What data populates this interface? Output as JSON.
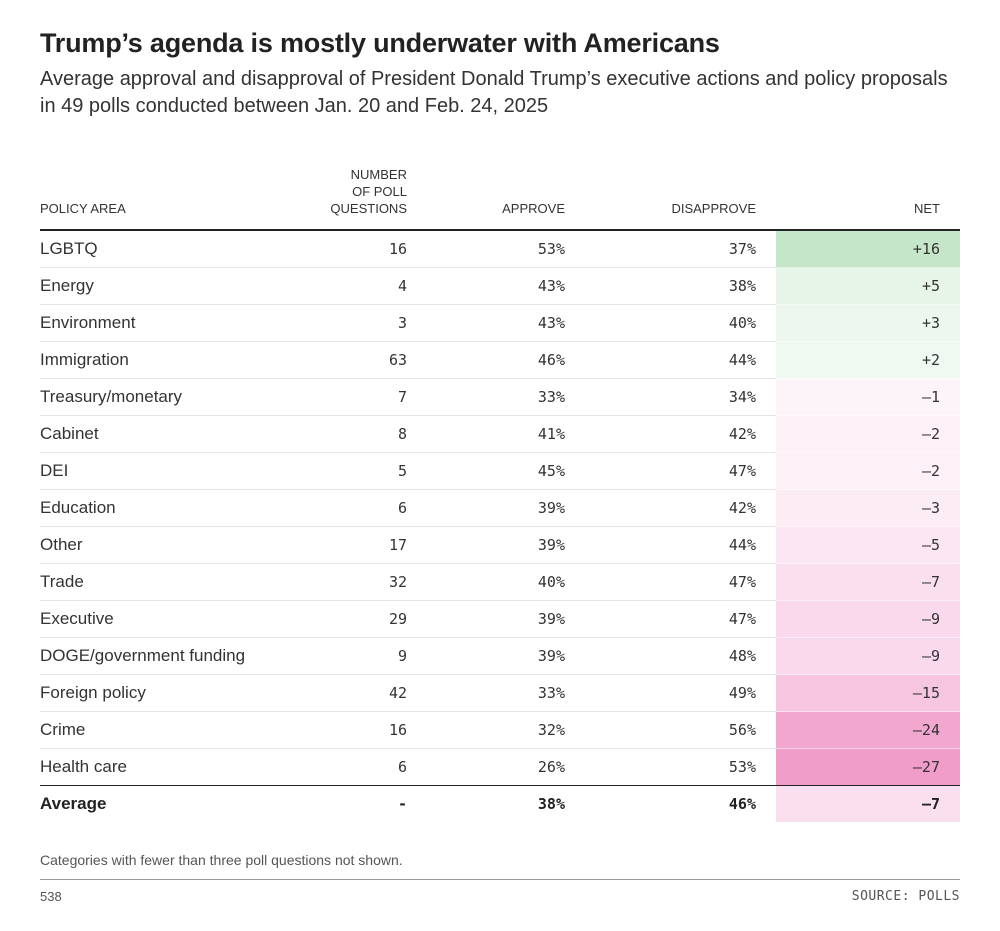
{
  "title": "Trump’s agenda is mostly underwater with Americans",
  "subtitle": "Average approval and disapproval of President Donald Trump’s executive actions and policy proposals in 49 polls conducted between Jan. 20 and Feb. 24, 2025",
  "colors": {
    "positive": "#c6e6c9",
    "negative": "#f09dca"
  },
  "chart_data": {
    "type": "table",
    "headers": {
      "policy_area": "POLICY AREA",
      "num_questions": [
        "NUMBER",
        "OF POLL",
        "QUESTIONS"
      ],
      "approve": "APPROVE",
      "disapprove": "DISAPPROVE",
      "net": "NET"
    },
    "rows": [
      {
        "area": "LGBTQ",
        "n": "16",
        "approve": "53%",
        "disapprove": "37%",
        "net": "+16",
        "net_value": 16
      },
      {
        "area": "Energy",
        "n": "4",
        "approve": "43%",
        "disapprove": "38%",
        "net": "+5",
        "net_value": 5
      },
      {
        "area": "Environment",
        "n": "3",
        "approve": "43%",
        "disapprove": "40%",
        "net": "+3",
        "net_value": 3
      },
      {
        "area": "Immigration",
        "n": "63",
        "approve": "46%",
        "disapprove": "44%",
        "net": "+2",
        "net_value": 2
      },
      {
        "area": "Treasury/monetary",
        "n": "7",
        "approve": "33%",
        "disapprove": "34%",
        "net": "–1",
        "net_value": -1
      },
      {
        "area": "Cabinet",
        "n": "8",
        "approve": "41%",
        "disapprove": "42%",
        "net": "–2",
        "net_value": -2
      },
      {
        "area": "DEI",
        "n": "5",
        "approve": "45%",
        "disapprove": "47%",
        "net": "–2",
        "net_value": -2
      },
      {
        "area": "Education",
        "n": "6",
        "approve": "39%",
        "disapprove": "42%",
        "net": "–3",
        "net_value": -3
      },
      {
        "area": "Other",
        "n": "17",
        "approve": "39%",
        "disapprove": "44%",
        "net": "–5",
        "net_value": -5
      },
      {
        "area": "Trade",
        "n": "32",
        "approve": "40%",
        "disapprove": "47%",
        "net": "–7",
        "net_value": -7
      },
      {
        "area": "Executive",
        "n": "29",
        "approve": "39%",
        "disapprove": "47%",
        "net": "–9",
        "net_value": -9
      },
      {
        "area": "DOGE/government funding",
        "n": "9",
        "approve": "39%",
        "disapprove": "48%",
        "net": "–9",
        "net_value": -9
      },
      {
        "area": "Foreign policy",
        "n": "42",
        "approve": "33%",
        "disapprove": "49%",
        "net": "–15",
        "net_value": -15
      },
      {
        "area": "Crime",
        "n": "16",
        "approve": "32%",
        "disapprove": "56%",
        "net": "–24",
        "net_value": -24
      },
      {
        "area": "Health care",
        "n": "6",
        "approve": "26%",
        "disapprove": "53%",
        "net": "–27",
        "net_value": -27
      }
    ],
    "average": {
      "area": "Average",
      "n": "-",
      "approve": "38%",
      "disapprove": "46%",
      "net": "–7",
      "net_value": -7
    }
  },
  "footnote": "Categories with fewer than three poll questions not shown.",
  "brand": "538",
  "source": "SOURCE: POLLS"
}
